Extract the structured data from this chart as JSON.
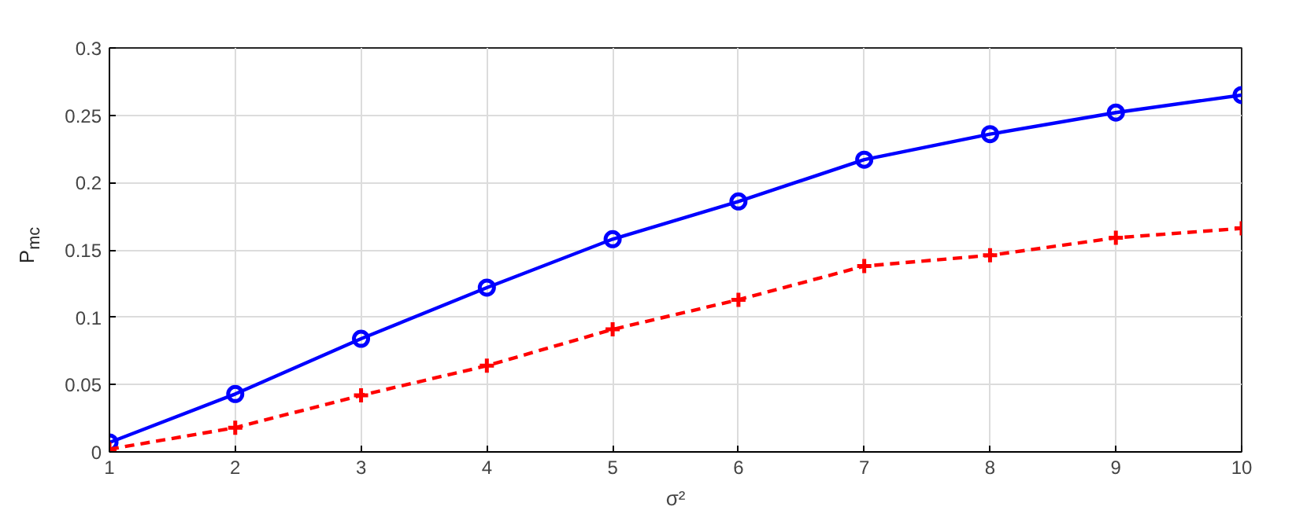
{
  "chart_data": {
    "type": "line",
    "xlabel": "σ²",
    "ylabel": "P$_{mc}$",
    "x": [
      1,
      2,
      3,
      4,
      5,
      6,
      7,
      8,
      9,
      10
    ],
    "series": [
      {
        "color": "#0000ff",
        "marker": "circle",
        "line_style": "solid",
        "values": [
          0.007,
          0.043,
          0.084,
          0.122,
          0.158,
          0.186,
          0.217,
          0.236,
          0.252,
          0.265
        ]
      },
      {
        "color": "#ff0000",
        "marker": "cross",
        "line_style": "dashed",
        "values": [
          0.002,
          0.018,
          0.042,
          0.064,
          0.091,
          0.113,
          0.138,
          0.146,
          0.159,
          0.166
        ]
      }
    ],
    "xlim": [
      1,
      10
    ],
    "ylim": [
      0,
      0.3
    ],
    "xticks": [
      1,
      2,
      3,
      4,
      5,
      6,
      7,
      8,
      9,
      10
    ],
    "yticks": [
      0,
      0.05,
      0.1,
      0.15,
      0.2,
      0.25,
      0.3
    ],
    "grid": true
  }
}
